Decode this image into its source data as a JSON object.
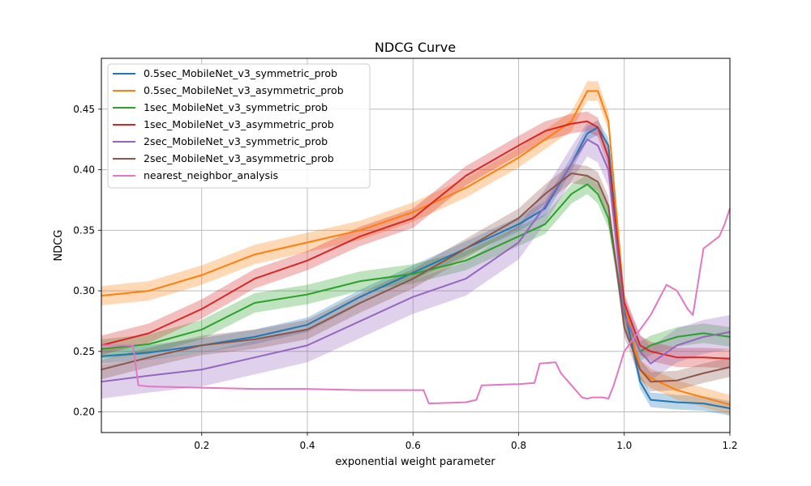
{
  "chart_data": {
    "type": "line",
    "title": "NDCG Curve",
    "xlabel": "exponential weight parameter",
    "ylabel": "NDCG",
    "xlim": [
      0.01,
      1.2
    ],
    "ylim": [
      0.183,
      0.492
    ],
    "xticks": [
      0.2,
      0.4,
      0.6,
      0.8,
      1.0,
      1.2
    ],
    "yticks": [
      0.2,
      0.25,
      0.3,
      0.35,
      0.4,
      0.45
    ],
    "grid": true,
    "legend_position": "top-left",
    "series": [
      {
        "name": "0.5sec_MobileNet_v3_symmetric_prob",
        "color": "#1f77b4",
        "band": 0.006,
        "x": [
          0.01,
          0.1,
          0.2,
          0.3,
          0.4,
          0.5,
          0.6,
          0.7,
          0.8,
          0.85,
          0.9,
          0.93,
          0.95,
          0.97,
          1.0,
          1.03,
          1.05,
          1.1,
          1.15,
          1.2
        ],
        "y": [
          0.246,
          0.249,
          0.255,
          0.262,
          0.272,
          0.295,
          0.315,
          0.335,
          0.355,
          0.368,
          0.405,
          0.43,
          0.435,
          0.42,
          0.285,
          0.225,
          0.21,
          0.208,
          0.207,
          0.203
        ]
      },
      {
        "name": "0.5sec_MobileNet_v3_asymmetric_prob",
        "color": "#ff7f0e",
        "band": 0.008,
        "x": [
          0.01,
          0.1,
          0.2,
          0.3,
          0.4,
          0.5,
          0.6,
          0.7,
          0.8,
          0.85,
          0.9,
          0.93,
          0.95,
          0.97,
          1.0,
          1.03,
          1.05,
          1.1,
          1.15,
          1.2
        ],
        "y": [
          0.296,
          0.3,
          0.313,
          0.33,
          0.34,
          0.35,
          0.365,
          0.385,
          0.41,
          0.425,
          0.44,
          0.465,
          0.465,
          0.44,
          0.29,
          0.235,
          0.228,
          0.218,
          0.212,
          0.206
        ]
      },
      {
        "name": "1sec_MobileNet_v3_symmetric_prob",
        "color": "#2ca02c",
        "band": 0.008,
        "x": [
          0.01,
          0.1,
          0.2,
          0.3,
          0.4,
          0.5,
          0.6,
          0.7,
          0.8,
          0.85,
          0.9,
          0.93,
          0.95,
          0.97,
          1.0,
          1.03,
          1.05,
          1.1,
          1.15,
          1.2
        ],
        "y": [
          0.252,
          0.256,
          0.268,
          0.29,
          0.297,
          0.308,
          0.314,
          0.325,
          0.345,
          0.355,
          0.38,
          0.388,
          0.38,
          0.36,
          0.28,
          0.25,
          0.255,
          0.262,
          0.265,
          0.262
        ]
      },
      {
        "name": "1sec_MobileNet_v3_asymmetric_prob",
        "color": "#d62728",
        "band": 0.008,
        "x": [
          0.01,
          0.1,
          0.2,
          0.3,
          0.4,
          0.5,
          0.6,
          0.7,
          0.8,
          0.85,
          0.9,
          0.93,
          0.95,
          0.97,
          1.0,
          1.03,
          1.05,
          1.1,
          1.15,
          1.2
        ],
        "y": [
          0.255,
          0.265,
          0.285,
          0.31,
          0.325,
          0.345,
          0.36,
          0.395,
          0.42,
          0.432,
          0.438,
          0.44,
          0.435,
          0.41,
          0.29,
          0.255,
          0.25,
          0.245,
          0.245,
          0.244
        ]
      },
      {
        "name": "2sec_MobileNet_v3_symmetric_prob",
        "color": "#9467bd",
        "band": 0.014,
        "x": [
          0.01,
          0.1,
          0.2,
          0.3,
          0.4,
          0.5,
          0.6,
          0.7,
          0.8,
          0.85,
          0.9,
          0.93,
          0.95,
          0.97,
          1.0,
          1.03,
          1.05,
          1.1,
          1.15,
          1.2
        ],
        "y": [
          0.225,
          0.23,
          0.235,
          0.245,
          0.255,
          0.275,
          0.295,
          0.31,
          0.34,
          0.37,
          0.405,
          0.425,
          0.42,
          0.4,
          0.28,
          0.25,
          0.24,
          0.255,
          0.262,
          0.266
        ]
      },
      {
        "name": "2sec_MobileNet_v3_asymmetric_prob",
        "color": "#8c564b",
        "band": 0.008,
        "x": [
          0.01,
          0.1,
          0.2,
          0.3,
          0.4,
          0.5,
          0.6,
          0.7,
          0.8,
          0.85,
          0.9,
          0.93,
          0.95,
          0.97,
          1.0,
          1.03,
          1.05,
          1.1,
          1.15,
          1.2
        ],
        "y": [
          0.235,
          0.245,
          0.255,
          0.26,
          0.268,
          0.29,
          0.31,
          0.335,
          0.36,
          0.38,
          0.397,
          0.395,
          0.39,
          0.37,
          0.27,
          0.235,
          0.225,
          0.226,
          0.232,
          0.237
        ]
      },
      {
        "name": "nearest_neighbor_analysis",
        "color": "#e377c2",
        "band": 0,
        "x": [
          0.01,
          0.07,
          0.08,
          0.1,
          0.2,
          0.3,
          0.4,
          0.5,
          0.6,
          0.62,
          0.63,
          0.7,
          0.72,
          0.73,
          0.8,
          0.83,
          0.84,
          0.87,
          0.88,
          0.9,
          0.92,
          0.93,
          0.94,
          0.96,
          0.97,
          0.98,
          1.0,
          1.05,
          1.08,
          1.1,
          1.12,
          1.13,
          1.15,
          1.18,
          1.19,
          1.2
        ],
        "y": [
          0.255,
          0.255,
          0.222,
          0.221,
          0.22,
          0.219,
          0.219,
          0.218,
          0.218,
          0.218,
          0.207,
          0.208,
          0.21,
          0.222,
          0.223,
          0.224,
          0.24,
          0.241,
          0.232,
          0.222,
          0.212,
          0.211,
          0.212,
          0.212,
          0.211,
          0.222,
          0.25,
          0.28,
          0.305,
          0.3,
          0.285,
          0.28,
          0.335,
          0.345,
          0.355,
          0.368
        ]
      }
    ]
  }
}
